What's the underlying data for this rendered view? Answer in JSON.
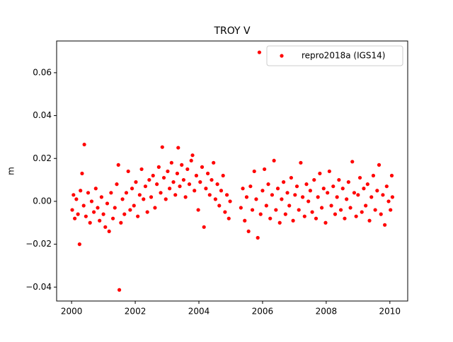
{
  "chart_data": {
    "type": "scatter",
    "title": "TROY V",
    "ylabel": "m",
    "legend": "upper right",
    "xlim": [
      1999.53,
      2010.56
    ],
    "xticks": [
      2000,
      2002,
      2004,
      2006,
      2008,
      2010
    ],
    "ylim": [
      -0.0465,
      0.0748
    ],
    "yticks": [
      {
        "value": -0.04,
        "label": "−0.04"
      },
      {
        "value": -0.02,
        "label": "−0.02"
      },
      {
        "value": 0,
        "label": "0.00"
      },
      {
        "value": 0.02,
        "label": "0.02"
      },
      {
        "value": 0.04,
        "label": "0.04"
      },
      {
        "value": 0.06,
        "label": "0.06"
      }
    ],
    "series": [
      {
        "name": "repro2018a (IGS14)",
        "color": "#ff0000",
        "x": [
          2000.02,
          2000.06,
          2000.1,
          2000.15,
          2000.2,
          2000.25,
          2000.28,
          2000.33,
          2000.38,
          2000.4,
          2000.45,
          2000.52,
          2000.58,
          2000.63,
          2000.7,
          2000.76,
          2000.82,
          2000.88,
          2000.94,
          2001.0,
          2001.06,
          2001.12,
          2001.18,
          2001.24,
          2001.3,
          2001.36,
          2001.42,
          2001.47,
          2001.5,
          2001.55,
          2001.6,
          2001.66,
          2001.72,
          2001.78,
          2001.84,
          2001.9,
          2001.96,
          2002.02,
          2002.08,
          2002.14,
          2002.2,
          2002.26,
          2002.32,
          2002.38,
          2002.44,
          2002.5,
          2002.56,
          2002.62,
          2002.68,
          2002.74,
          2002.8,
          2002.85,
          2002.9,
          2002.96,
          2003.02,
          2003.08,
          2003.14,
          2003.2,
          2003.26,
          2003.32,
          2003.35,
          2003.4,
          2003.46,
          2003.52,
          2003.58,
          2003.64,
          2003.7,
          2003.76,
          2003.8,
          2003.86,
          2003.92,
          2003.98,
          2004.04,
          2004.1,
          2004.16,
          2004.22,
          2004.28,
          2004.34,
          2004.4,
          2004.46,
          2004.52,
          2004.58,
          2004.64,
          2004.7,
          2004.76,
          2004.82,
          2004.88,
          2004.94,
          2004.98,
          2005.32,
          2005.38,
          2005.44,
          2005.5,
          2005.56,
          2005.62,
          2005.68,
          2005.74,
          2005.8,
          2005.85,
          2005.9,
          2005.94,
          2006.0,
          2006.06,
          2006.12,
          2006.18,
          2006.24,
          2006.3,
          2006.36,
          2006.42,
          2006.48,
          2006.54,
          2006.6,
          2006.66,
          2006.72,
          2006.78,
          2006.84,
          2006.9,
          2006.96,
          2007.02,
          2007.08,
          2007.14,
          2007.2,
          2007.26,
          2007.32,
          2007.38,
          2007.44,
          2007.5,
          2007.56,
          2007.62,
          2007.68,
          2007.74,
          2007.8,
          2007.86,
          2007.92,
          2007.98,
          2008.04,
          2008.1,
          2008.16,
          2008.22,
          2008.28,
          2008.34,
          2008.4,
          2008.46,
          2008.52,
          2008.58,
          2008.64,
          2008.7,
          2008.76,
          2008.82,
          2008.88,
          2008.94,
          2009.0,
          2009.06,
          2009.12,
          2009.18,
          2009.24,
          2009.3,
          2009.36,
          2009.42,
          2009.48,
          2009.54,
          2009.6,
          2009.66,
          2009.72,
          2009.78,
          2009.84,
          2009.9,
          2009.96,
          2010.02,
          2010.06,
          2010.08
        ],
        "values": [
          -0.004,
          0.003,
          -0.008,
          0.001,
          -0.006,
          -0.02,
          0.005,
          0.013,
          -0.002,
          0.0265,
          -0.007,
          0.004,
          -0.01,
          0.0,
          -0.005,
          0.006,
          -0.003,
          -0.009,
          0.002,
          -0.006,
          -0.012,
          -0.001,
          -0.014,
          0.004,
          -0.008,
          -0.003,
          0.008,
          0.017,
          -0.0413,
          -0.01,
          0.001,
          -0.006,
          0.004,
          0.014,
          -0.004,
          0.006,
          -0.002,
          0.009,
          -0.007,
          0.003,
          0.015,
          0.001,
          0.007,
          -0.005,
          0.01,
          0.002,
          0.012,
          -0.003,
          0.008,
          0.016,
          0.004,
          0.0253,
          0.011,
          0.001,
          0.014,
          0.006,
          0.018,
          0.009,
          0.003,
          0.013,
          0.025,
          0.007,
          0.017,
          0.01,
          0.002,
          0.015,
          0.008,
          0.019,
          0.0215,
          0.005,
          0.012,
          -0.004,
          0.009,
          0.016,
          -0.012,
          0.006,
          0.013,
          0.003,
          0.01,
          0.018,
          0.001,
          0.008,
          -0.002,
          0.005,
          0.012,
          -0.005,
          0.003,
          -0.008,
          0.0,
          -0.003,
          0.006,
          -0.009,
          0.002,
          -0.014,
          0.007,
          -0.004,
          0.014,
          0.001,
          -0.017,
          0.0695,
          -0.006,
          0.005,
          0.015,
          -0.002,
          0.008,
          -0.008,
          0.003,
          0.019,
          -0.004,
          0.006,
          -0.01,
          0.001,
          0.009,
          -0.006,
          0.004,
          -0.002,
          0.011,
          -0.009,
          0.003,
          0.007,
          -0.004,
          0.018,
          0.002,
          -0.007,
          0.008,
          0.0,
          0.005,
          -0.005,
          0.01,
          -0.008,
          0.002,
          0.013,
          -0.003,
          0.006,
          -0.01,
          0.004,
          0.014,
          -0.002,
          0.007,
          -0.006,
          0.002,
          0.01,
          -0.004,
          0.006,
          -0.008,
          0.001,
          0.009,
          -0.003,
          0.0185,
          0.004,
          -0.007,
          0.003,
          0.011,
          -0.005,
          0.006,
          -0.002,
          0.008,
          -0.009,
          0.002,
          0.012,
          -0.004,
          0.005,
          0.017,
          -0.006,
          0.003,
          -0.011,
          0.007,
          0.0,
          -0.004,
          0.012,
          0.002
        ]
      }
    ]
  }
}
